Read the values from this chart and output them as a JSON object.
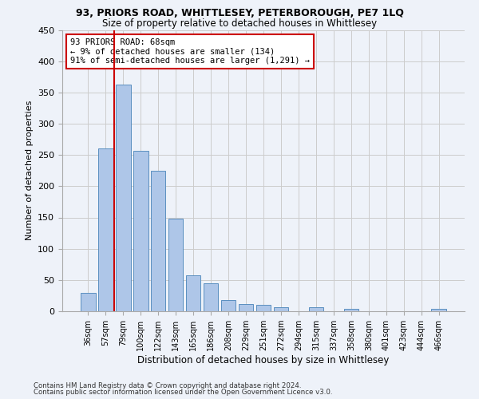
{
  "title1": "93, PRIORS ROAD, WHITTLESEY, PETERBOROUGH, PE7 1LQ",
  "title2": "Size of property relative to detached houses in Whittlesey",
  "xlabel": "Distribution of detached houses by size in Whittlesey",
  "ylabel": "Number of detached properties",
  "categories": [
    "36sqm",
    "57sqm",
    "79sqm",
    "100sqm",
    "122sqm",
    "143sqm",
    "165sqm",
    "186sqm",
    "208sqm",
    "229sqm",
    "251sqm",
    "272sqm",
    "294sqm",
    "315sqm",
    "337sqm",
    "358sqm",
    "380sqm",
    "401sqm",
    "423sqm",
    "444sqm",
    "466sqm"
  ],
  "values": [
    30,
    260,
    362,
    257,
    225,
    148,
    57,
    45,
    18,
    11,
    10,
    7,
    0,
    6,
    0,
    4,
    0,
    0,
    0,
    0,
    4
  ],
  "bar_color": "#aec6e8",
  "bar_edge_color": "#5a8fc0",
  "vline_x": 1.5,
  "vline_color": "#cc0000",
  "annotation_text": "93 PRIORS ROAD: 68sqm\n← 9% of detached houses are smaller (134)\n91% of semi-detached houses are larger (1,291) →",
  "annotation_box_color": "#ffffff",
  "annotation_box_edge": "#cc0000",
  "ylim": [
    0,
    450
  ],
  "yticks": [
    0,
    50,
    100,
    150,
    200,
    250,
    300,
    350,
    400,
    450
  ],
  "footnote1": "Contains HM Land Registry data © Crown copyright and database right 2024.",
  "footnote2": "Contains public sector information licensed under the Open Government Licence v3.0.",
  "background_color": "#eef2f9"
}
